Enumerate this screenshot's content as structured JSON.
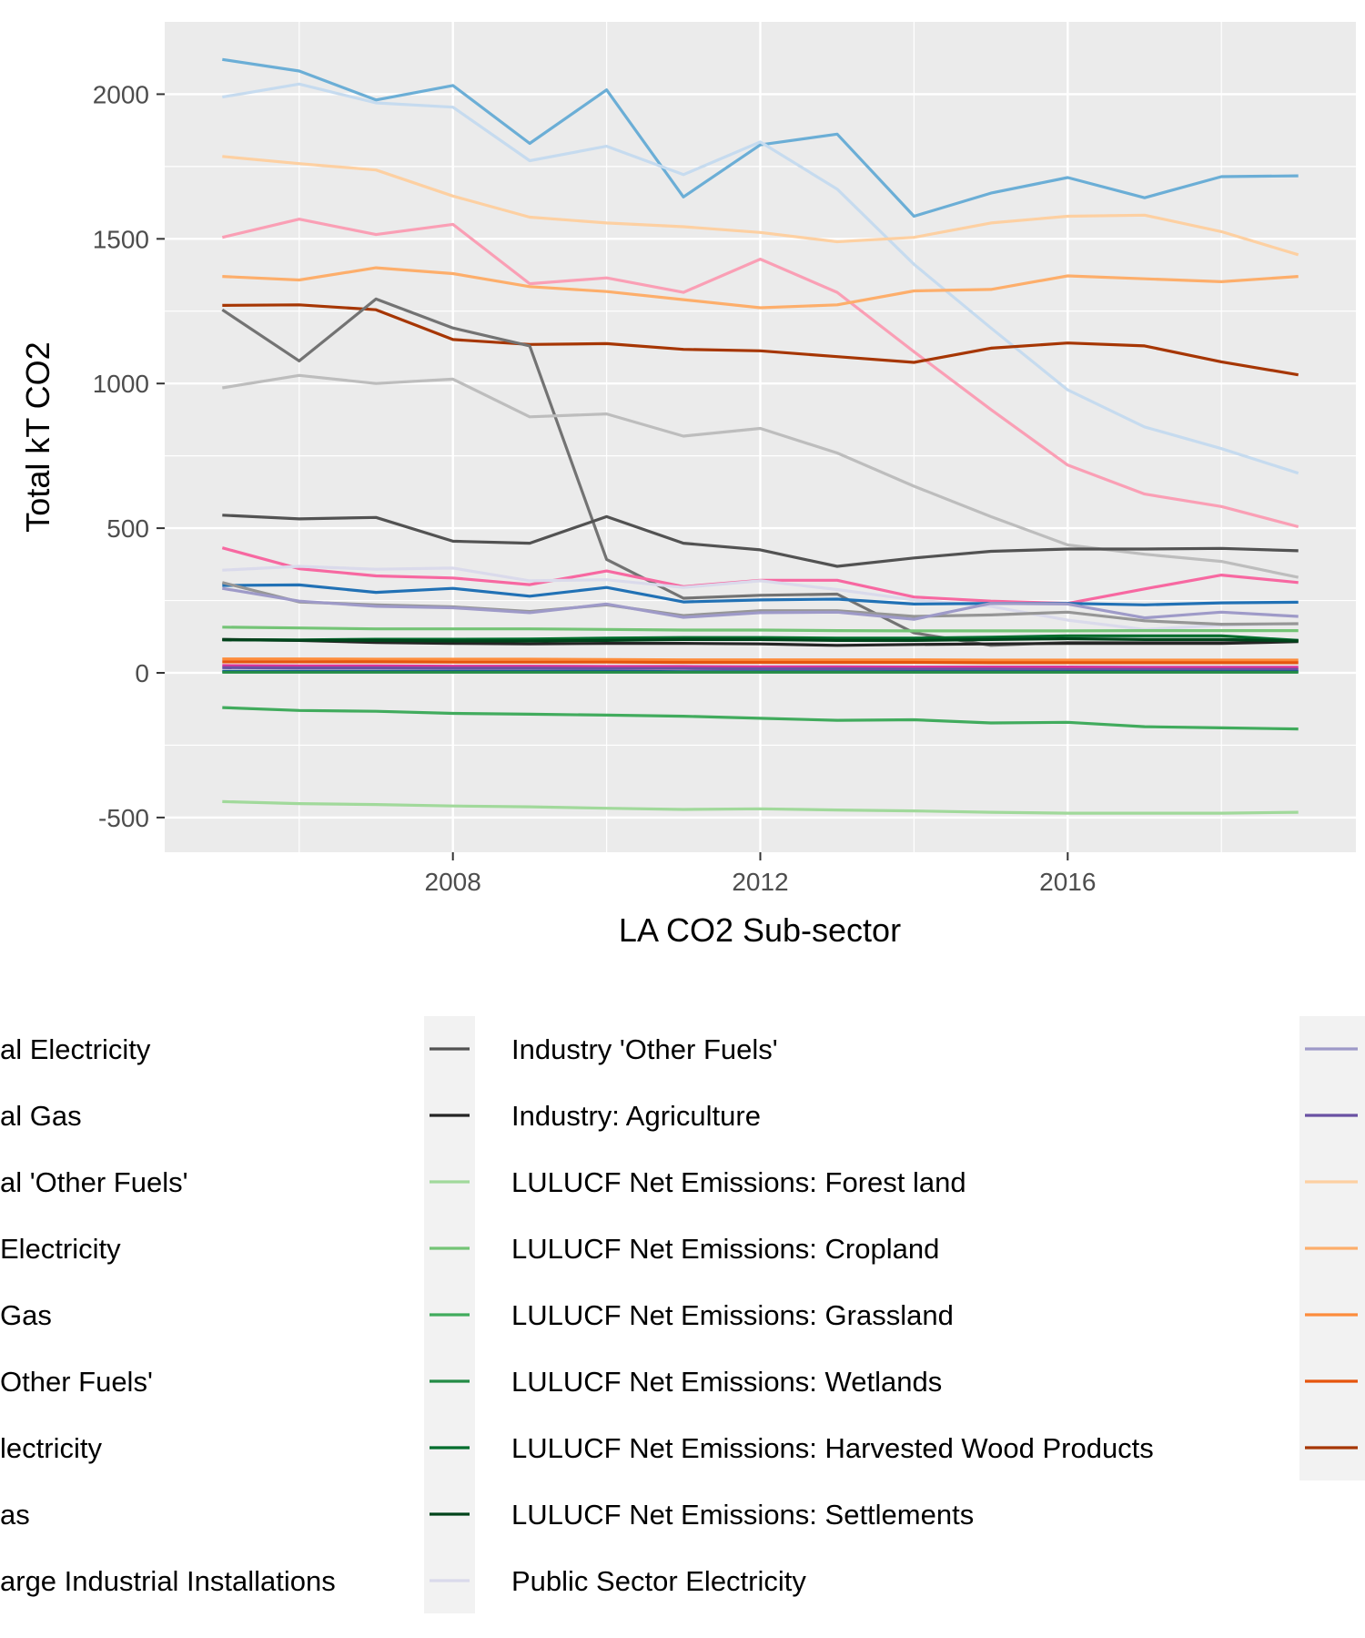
{
  "chart_data": {
    "type": "line",
    "xlabel": "LA CO2 Sub-sector",
    "ylabel": "Total kT CO2",
    "xlim": [
      2004.25,
      2019.75
    ],
    "ylim": [
      -620,
      2250
    ],
    "xticks": [
      2008,
      2012,
      2016
    ],
    "yticks": [
      -500,
      0,
      500,
      1000,
      1500,
      2000
    ],
    "grid": true,
    "legend_position": "bottom",
    "x": [
      2005,
      2006,
      2007,
      2008,
      2009,
      2010,
      2011,
      2012,
      2013,
      2014,
      2015,
      2016,
      2017,
      2018,
      2019
    ],
    "series": [
      {
        "name": null,
        "color": "#6baed6",
        "values": [
          2120,
          2080,
          1980,
          2030,
          1830,
          2015,
          1645,
          1825,
          1862,
          1578,
          1658,
          1712,
          1642,
          1715,
          1718
        ]
      },
      {
        "name": null,
        "color": "#c6dbef",
        "values": [
          1990,
          2035,
          1970,
          1955,
          1770,
          1820,
          1722,
          1835,
          1672,
          1412,
          1192,
          978,
          850,
          775,
          690
        ]
      },
      {
        "name": null,
        "color": "#fdd0a2",
        "values": [
          1785,
          1760,
          1738,
          1648,
          1575,
          1555,
          1542,
          1522,
          1490,
          1505,
          1555,
          1578,
          1582,
          1525,
          1445
        ]
      },
      {
        "name": null,
        "color": "#fa9fb5",
        "values": [
          1505,
          1568,
          1515,
          1550,
          1345,
          1365,
          1315,
          1430,
          1315,
          1110,
          910,
          718,
          618,
          575,
          505
        ]
      },
      {
        "name": null,
        "color": "#fdae6b",
        "values": [
          1370,
          1358,
          1400,
          1380,
          1335,
          1318,
          1290,
          1262,
          1272,
          1320,
          1325,
          1372,
          1362,
          1352,
          1370
        ]
      },
      {
        "name": null,
        "color": "#a63603",
        "values": [
          1270,
          1272,
          1255,
          1152,
          1135,
          1138,
          1118,
          1113,
          1093,
          1073,
          1122,
          1140,
          1130,
          1075,
          1030
        ]
      },
      {
        "name": null,
        "color": "#737373",
        "values": [
          1255,
          1078,
          1292,
          1192,
          1130,
          392,
          258,
          268,
          272,
          138,
          95,
          105,
          105,
          106,
          112
        ]
      },
      {
        "name": null,
        "color": "#bdbdbd",
        "values": [
          985,
          1028,
          1000,
          1015,
          885,
          895,
          818,
          845,
          760,
          645,
          540,
          442,
          410,
          385,
          330
        ]
      },
      {
        "name": "Industry 'Other Fuels'",
        "color": "#525252",
        "values": [
          545,
          532,
          537,
          455,
          448,
          540,
          448,
          425,
          368,
          397,
          420,
          428,
          428,
          430,
          422
        ]
      },
      {
        "name": null,
        "color": "#f768a1",
        "values": [
          432,
          360,
          335,
          328,
          305,
          352,
          298,
          320,
          320,
          262,
          248,
          240,
          290,
          338,
          312
        ]
      },
      {
        "name": "Public Sector Electricity",
        "color": "#dadaeb",
        "values": [
          355,
          368,
          358,
          362,
          318,
          322,
          295,
          318,
          288,
          252,
          230,
          182,
          150,
          165,
          170
        ]
      },
      {
        "name": null,
        "color": "#2171b5",
        "values": [
          302,
          304,
          278,
          292,
          265,
          295,
          245,
          252,
          255,
          238,
          240,
          240,
          235,
          242,
          244
        ]
      },
      {
        "name": null,
        "color": "#969696",
        "values": [
          312,
          245,
          235,
          228,
          212,
          235,
          198,
          215,
          215,
          195,
          200,
          210,
          180,
          168,
          170
        ]
      },
      {
        "name": null,
        "color": "#9e9ac8",
        "values": [
          292,
          248,
          230,
          225,
          208,
          238,
          192,
          208,
          210,
          185,
          240,
          238,
          190,
          210,
          195
        ]
      },
      {
        "name": "LULUCF Net Emissions: Cropland",
        "color": "#74c476",
        "values": [
          158,
          155,
          152,
          152,
          152,
          150,
          148,
          148,
          146,
          145,
          145,
          145,
          146,
          146,
          146
        ]
      },
      {
        "name": "LULUCF Net Emissions: Harvested Wood Products",
        "color": "#006d2c",
        "values": [
          115,
          114,
          116,
          116,
          117,
          120,
          122,
          122,
          120,
          120,
          123,
          128,
          128,
          128,
          112
        ]
      },
      {
        "name": "Industry: Agriculture",
        "color": "#252525",
        "values": [
          115,
          112,
          105,
          102,
          100,
          102,
          102,
          100,
          95,
          98,
          100,
          102,
          102,
          102,
          108
        ]
      },
      {
        "name": "LULUCF Net Emissions: Settlements",
        "color": "#00441b",
        "values": [
          114,
          113,
          112,
          110,
          110,
          112,
          115,
          115,
          112,
          112,
          115,
          118,
          115,
          115,
          110
        ]
      },
      {
        "name": null,
        "color": "#fd8d3c",
        "values": [
          48,
          48,
          47,
          47,
          47,
          46,
          45,
          45,
          45,
          45,
          44,
          44,
          44,
          44,
          44
        ]
      },
      {
        "name": null,
        "color": "#e6550d",
        "values": [
          38,
          38,
          38,
          37,
          37,
          37,
          36,
          36,
          36,
          36,
          35,
          35,
          35,
          35,
          35
        ]
      },
      {
        "name": null,
        "color": "#dd3497",
        "values": [
          25,
          24,
          24,
          23,
          23,
          22,
          22,
          21,
          21,
          20,
          20,
          20,
          19,
          19,
          19
        ]
      },
      {
        "name": null,
        "color": "#6a51a3",
        "values": [
          18,
          17,
          17,
          16,
          16,
          15,
          15,
          14,
          14,
          13,
          13,
          12,
          12,
          12,
          12
        ]
      },
      {
        "name": null,
        "color": "#08519c",
        "values": [
          5,
          5,
          5,
          5,
          5,
          5,
          4,
          4,
          4,
          4,
          4,
          4,
          4,
          4,
          4
        ]
      },
      {
        "name": "LULUCF Net Emissions: Wetlands",
        "color": "#238b45",
        "values": [
          2,
          2,
          2,
          2,
          2,
          2,
          2,
          2,
          2,
          2,
          2,
          2,
          2,
          2,
          2
        ]
      },
      {
        "name": "LULUCF Net Emissions: Grassland",
        "color": "#41ab5d",
        "values": [
          -120,
          -130,
          -133,
          -140,
          -143,
          -146,
          -150,
          -157,
          -164,
          -162,
          -173,
          -171,
          -186,
          -190,
          -194
        ]
      },
      {
        "name": "LULUCF Net Emissions: Forest land",
        "color": "#a1d99b",
        "values": [
          -445,
          -452,
          -455,
          -460,
          -463,
          -468,
          -472,
          -470,
          -474,
          -477,
          -482,
          -485,
          -485,
          -485,
          -482
        ]
      }
    ],
    "legend": {
      "col1_partial_labels": [
        "al Electricity",
        "al Gas",
        "al 'Other Fuels'",
        "Electricity",
        "Gas",
        "Other Fuels'",
        "lectricity",
        "as",
        "arge Industrial Installations"
      ],
      "col2": [
        {
          "label": "Industry 'Other Fuels'",
          "color": "#525252"
        },
        {
          "label": "Industry: Agriculture",
          "color": "#252525"
        },
        {
          "label": "LULUCF Net Emissions: Forest land",
          "color": "#a1d99b"
        },
        {
          "label": "LULUCF Net Emissions: Cropland",
          "color": "#74c476"
        },
        {
          "label": "LULUCF Net Emissions: Grassland",
          "color": "#41ab5d"
        },
        {
          "label": "LULUCF Net Emissions: Wetlands",
          "color": "#238b45"
        },
        {
          "label": "LULUCF Net Emissions: Harvested Wood Products",
          "color": "#006d2c"
        },
        {
          "label": "LULUCF Net Emissions: Settlements",
          "color": "#00441b"
        },
        {
          "label": "Public Sector Electricity",
          "color": "#dadaeb"
        }
      ],
      "col3_colors": [
        "#9e9ac8",
        "#6a51a3",
        "#fdd0a2",
        "#fdae6b",
        "#fd8d3c",
        "#e6550d",
        "#a63603"
      ]
    }
  }
}
